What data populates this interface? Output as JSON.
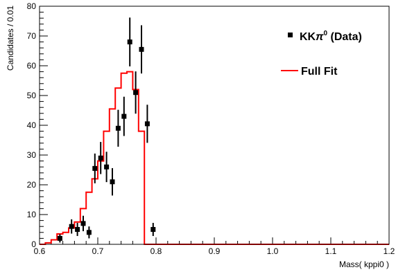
{
  "chart_data": {
    "type": "scatter",
    "xlabel": "Mass( kppi0 )",
    "ylabel": "Candidates / 0.01",
    "xlim": [
      0.6,
      1.2
    ],
    "ylim": [
      0,
      80
    ],
    "x_ticks": [
      "0.6",
      "0.7",
      "0.8",
      "0.9",
      "1.0",
      "1.1",
      "1.2"
    ],
    "y_ticks": [
      "0",
      "10",
      "20",
      "30",
      "40",
      "50",
      "60",
      "70",
      "80"
    ],
    "x_tick_values": [
      0.6,
      0.7,
      0.8,
      0.9,
      1.0,
      1.1,
      1.2
    ],
    "y_tick_values": [
      0,
      10,
      20,
      30,
      40,
      50,
      60,
      70,
      80
    ],
    "x_minor_step": 0.02,
    "y_minor_step": 2,
    "legend": {
      "placement": "top-right",
      "entries": [
        {
          "label_main": "KK",
          "label_pi": "π",
          "label_sup": "0",
          "label_tail": " (Data)",
          "marker": "square",
          "color": "#000000"
        },
        {
          "label": "Full Fit",
          "marker": "line",
          "color": "#ff0000"
        }
      ]
    },
    "series": [
      {
        "name": "KKπ0 (Data)",
        "kind": "points_with_errors",
        "color": "#000000",
        "points": [
          {
            "x": 0.635,
            "y": 2,
            "err": 1.4
          },
          {
            "x": 0.655,
            "y": 6,
            "err": 2.4
          },
          {
            "x": 0.665,
            "y": 5,
            "err": 2.2
          },
          {
            "x": 0.675,
            "y": 7,
            "err": 2.6
          },
          {
            "x": 0.685,
            "y": 4,
            "err": 2.0
          },
          {
            "x": 0.695,
            "y": 25.5,
            "err": 5.0
          },
          {
            "x": 0.705,
            "y": 29,
            "err": 5.4
          },
          {
            "x": 0.715,
            "y": 26,
            "err": 5.1
          },
          {
            "x": 0.725,
            "y": 21,
            "err": 4.6
          },
          {
            "x": 0.735,
            "y": 39,
            "err": 6.2
          },
          {
            "x": 0.745,
            "y": 43,
            "err": 6.6
          },
          {
            "x": 0.755,
            "y": 68,
            "err": 8.2
          },
          {
            "x": 0.765,
            "y": 51,
            "err": 7.1
          },
          {
            "x": 0.775,
            "y": 65.5,
            "err": 8.1
          },
          {
            "x": 0.785,
            "y": 40.5,
            "err": 6.4
          },
          {
            "x": 0.795,
            "y": 5,
            "err": 2.2
          }
        ]
      },
      {
        "name": "Full Fit",
        "kind": "step",
        "color": "#ff0000",
        "bin_width": 0.01,
        "bin_edges_start": 0.6,
        "values": [
          0,
          0.5,
          1.5,
          3.5,
          4.0,
          5.5,
          7.5,
          12.0,
          17.5,
          22.0,
          28.0,
          38.0,
          45.5,
          52.5,
          57.5,
          58.0,
          52.0,
          38.0,
          0,
          0,
          0,
          0,
          0,
          0,
          0,
          0,
          0,
          0,
          0,
          0,
          0,
          0,
          0,
          0,
          0,
          0,
          0,
          0,
          0,
          0,
          0,
          0,
          0,
          0,
          0,
          0,
          0,
          0,
          0,
          0,
          0,
          0,
          0,
          0,
          0,
          0,
          0,
          0,
          0,
          0
        ]
      }
    ]
  }
}
